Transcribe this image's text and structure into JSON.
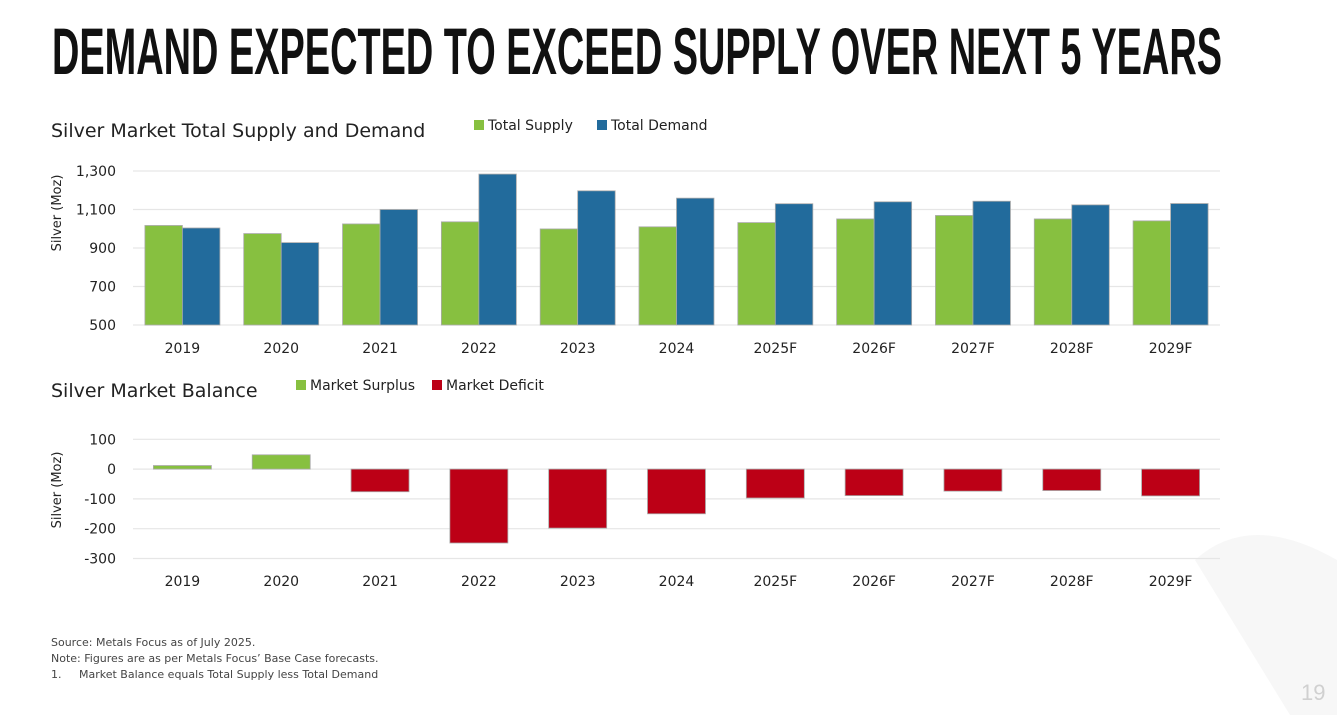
{
  "title": "DEMAND EXPECTED TO EXCEED SUPPLY OVER NEXT 5 YEARS",
  "colors": {
    "supply": "#87c040",
    "demand": "#226b9c",
    "surplus": "#87c040",
    "deficit": "#bc0016",
    "grid": "#e6e6e6"
  },
  "chart_data": [
    {
      "type": "bar",
      "title": "Silver Market Total Supply and Demand",
      "xlabel": "",
      "ylabel": "Silver (Moz)",
      "ylim": [
        500,
        1300
      ],
      "yticks": [
        500,
        700,
        900,
        1100,
        1300
      ],
      "ytick_labels": [
        "500",
        "700",
        "900",
        "1,100",
        "1,300"
      ],
      "legend_position": "top",
      "grid": true,
      "categories": [
        "2019",
        "2020",
        "2021",
        "2022",
        "2023",
        "2024",
        "2025F",
        "2026F",
        "2027F",
        "2028F",
        "2029F"
      ],
      "series": [
        {
          "name": "Total Supply",
          "values": [
            1017,
            975,
            1025,
            1036,
            999,
            1010,
            1032,
            1051,
            1069,
            1051,
            1041
          ]
        },
        {
          "name": "Total Demand",
          "values": [
            1004,
            928,
            1100,
            1284,
            1197,
            1159,
            1130,
            1140,
            1143,
            1124,
            1131
          ]
        }
      ]
    },
    {
      "type": "bar",
      "title": "Silver Market Balance",
      "xlabel": "",
      "ylabel": "Silver (Moz)",
      "ylim": [
        -300,
        100
      ],
      "yticks": [
        -300,
        -200,
        -100,
        0,
        100
      ],
      "ytick_labels": [
        "-300",
        "-200",
        "-100",
        "0",
        "100"
      ],
      "legend_position": "top",
      "grid": true,
      "legend": [
        "Market Surplus",
        "Market Deficit"
      ],
      "categories": [
        "2019",
        "2020",
        "2021",
        "2022",
        "2023",
        "2024",
        "2025F",
        "2026F",
        "2027F",
        "2028F",
        "2029F"
      ],
      "values": [
        12,
        48,
        -76,
        -248,
        -198,
        -150,
        -97,
        -89,
        -74,
        -72,
        -90
      ]
    }
  ],
  "notes": {
    "source": "Source: Metals Focus as of July 2025.",
    "note": "Note: Figures are as per Metals Focus’ Base Case forecasts.",
    "footnote_num": "1.",
    "footnote": "Market Balance equals Total Supply less Total Demand"
  },
  "page_number": "19"
}
